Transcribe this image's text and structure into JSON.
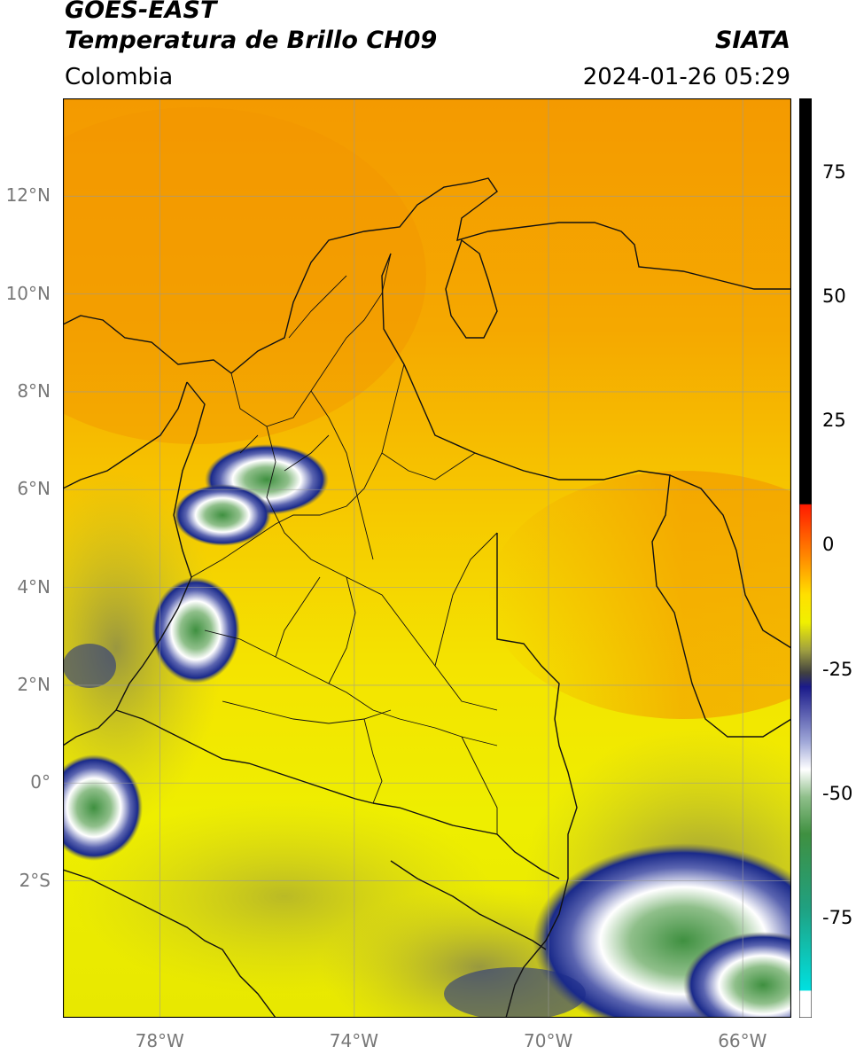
{
  "header": {
    "satellite": "GOES-EAST",
    "product": "Temperatura de Brillo CH09",
    "region": "Colombia",
    "agency": "SIATA",
    "datetime": "2024-01-26 05:29"
  },
  "map": {
    "lon_range": [
      -80.0,
      -65.0
    ],
    "lat_range": [
      -4.8,
      14.0
    ],
    "lat_ticks": [
      {
        "value": 12,
        "label": "12°N"
      },
      {
        "value": 10,
        "label": "10°N"
      },
      {
        "value": 8,
        "label": "8°N"
      },
      {
        "value": 6,
        "label": "6°N"
      },
      {
        "value": 4,
        "label": "4°N"
      },
      {
        "value": 2,
        "label": "2°N"
      },
      {
        "value": 0,
        "label": "0°"
      },
      {
        "value": -2,
        "label": "2°S"
      }
    ],
    "lon_ticks": [
      {
        "value": -78,
        "label": "78°W"
      },
      {
        "value": -74,
        "label": "74°W"
      },
      {
        "value": -70,
        "label": "70°W"
      },
      {
        "value": -66,
        "label": "66°W"
      }
    ],
    "grid": true,
    "colors": {
      "orange": "#f5a300",
      "yellow": "#f2f000",
      "olive": "#b8b43a",
      "navy": "#1a2a8a",
      "white": "#ffffff",
      "green": "#3f9040"
    }
  },
  "colorbar": {
    "range": [
      -95,
      90
    ],
    "ticks": [
      {
        "value": 75,
        "label": "75"
      },
      {
        "value": 50,
        "label": "50"
      },
      {
        "value": 25,
        "label": "25"
      },
      {
        "value": 0,
        "label": "0"
      },
      {
        "value": -25,
        "label": "-25"
      },
      {
        "value": -50,
        "label": "-50"
      },
      {
        "value": -75,
        "label": "-75"
      }
    ]
  }
}
